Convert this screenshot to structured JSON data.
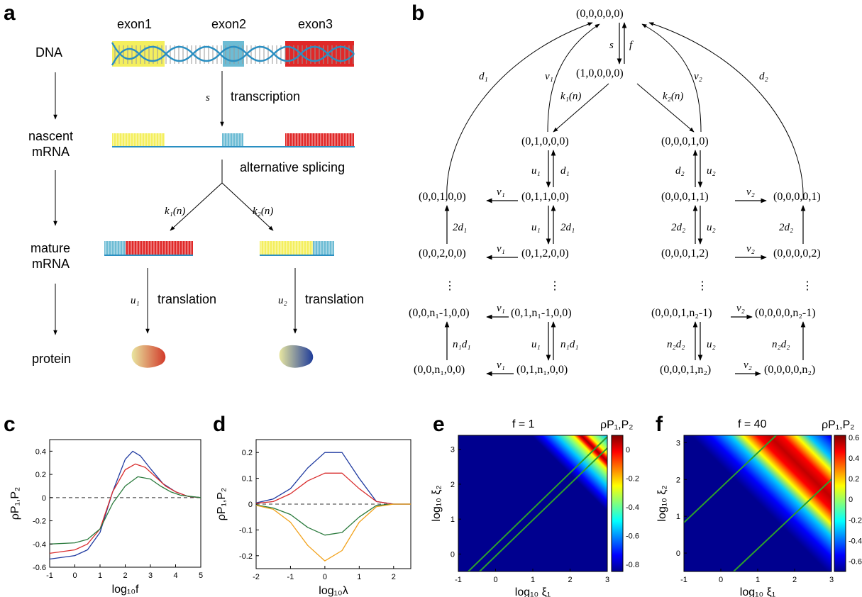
{
  "panel_labels": {
    "a": "a",
    "b": "b",
    "c": "c",
    "d": "d",
    "e": "e",
    "f": "f"
  },
  "panel_a": {
    "exon1": "exon1",
    "exon2": "exon2",
    "exon3": "exon3",
    "dna": "DNA",
    "nascent1": "nascent",
    "nascent2": "mRNA",
    "mature1": "mature",
    "mature2": "mRNA",
    "protein": "protein",
    "s": "s",
    "transcription": "transcription",
    "alt_splicing": "alternative splicing",
    "k1": "k₁(n)",
    "k2": "k₂(n)",
    "u1": "u₁",
    "u2": "u₂",
    "translation1": "translation",
    "translation2": "translation"
  },
  "panel_b": {
    "top": "(0,0,0,0,0)",
    "second": "(1,0,0,0,0)",
    "s": "s",
    "f": "f",
    "d1": "d₁",
    "v1": "v₁",
    "v2": "v₂",
    "d2": "d₂",
    "k1n": "k₁(n)",
    "k2n": "k₂(n)",
    "l1": "(0,1,0,0,0)",
    "r1": "(0,0,0,1,0)",
    "u1": "u₁",
    "du1": "d₁",
    "d2l": "d₂",
    "u2": "u₂",
    "l2": "(0,1,1,0,0)",
    "ll2": "(0,0,1,0,0)",
    "r2": "(0,0,0,1,1)",
    "rr2": "(0,0,0,0,1)",
    "two_d1": "2d₁",
    "two_d2": "2d₂",
    "l3": "(0,1,2,0,0)",
    "ll3": "(0,0,2,0,0)",
    "r3": "(0,0,0,1,2)",
    "rr3": "(0,0,0,0,2)",
    "dots": "⋮",
    "l4": "(0,1,n₁-1,0,0)",
    "ll4": "(0,0,n₁-1,0,0)",
    "r4": "(0,0,0,1,n₂-1)",
    "rr4": "(0,0,0,0,n₂-1)",
    "n1d1": "n₁d₁",
    "n2d2": "n₂d₂",
    "l5": "(0,1,n₁,0,0)",
    "ll5": "(0,0,n₁,0,0)",
    "r5": "(0,0,0,1,n₂)",
    "rr5": "(0,0,0,0,n₂)"
  },
  "panel_e_title": "f = 1",
  "panel_f_title": "f = 40",
  "colorbar_label": "ρP₁,P₂",
  "chart_data": [
    {
      "panel": "c",
      "type": "line",
      "xlabel": "log₁₀f",
      "ylabel": "ρP₁,P₂",
      "xlim": [
        -1,
        5
      ],
      "ylim": [
        -0.6,
        0.5
      ],
      "xticks": [
        -1,
        0,
        1,
        2,
        3,
        4,
        5
      ],
      "yticks": [
        -0.6,
        -0.4,
        -0.2,
        0,
        0.2,
        0.4
      ],
      "reference_line": 0,
      "series": [
        {
          "color": "#1f3aa0",
          "x": [
            -1,
            0,
            0.5,
            1,
            1.5,
            2,
            2.3,
            2.6,
            3,
            3.5,
            4,
            4.5,
            5
          ],
          "y": [
            -0.53,
            -0.5,
            -0.45,
            -0.3,
            0.05,
            0.33,
            0.4,
            0.36,
            0.25,
            0.12,
            0.05,
            0.01,
            0
          ]
        },
        {
          "color": "#d92d2d",
          "x": [
            -1,
            0,
            0.5,
            1,
            1.5,
            2,
            2.4,
            2.8,
            3.2,
            3.6,
            4,
            4.5,
            5
          ],
          "y": [
            -0.48,
            -0.45,
            -0.4,
            -0.27,
            0.05,
            0.24,
            0.29,
            0.26,
            0.18,
            0.1,
            0.05,
            0.01,
            0
          ]
        },
        {
          "color": "#2a7a3c",
          "x": [
            -1,
            0,
            0.5,
            1,
            1.5,
            2,
            2.5,
            3,
            3.4,
            3.8,
            4.2,
            4.6,
            5
          ],
          "y": [
            -0.4,
            -0.39,
            -0.36,
            -0.27,
            -0.05,
            0.1,
            0.18,
            0.16,
            0.1,
            0.05,
            0.02,
            0.01,
            0
          ]
        }
      ]
    },
    {
      "panel": "d",
      "type": "line",
      "xlabel": "log₁₀λ",
      "ylabel": "ρP₁,P₂",
      "xlim": [
        -2,
        2.5
      ],
      "ylim": [
        -0.25,
        0.25
      ],
      "xticks": [
        -2,
        -1,
        0,
        1,
        2
      ],
      "yticks": [
        -0.2,
        -0.1,
        0,
        0.1,
        0.2
      ],
      "reference_line": 0,
      "series": [
        {
          "color": "#1f3aa0",
          "x": [
            -2,
            -1.5,
            -1,
            -0.5,
            0,
            0.5,
            1,
            1.5,
            2,
            2.5
          ],
          "y": [
            0.005,
            0.02,
            0.06,
            0.14,
            0.2,
            0.2,
            0.1,
            0.01,
            0,
            0
          ]
        },
        {
          "color": "#d92d2d",
          "x": [
            -2,
            -1.5,
            -1,
            -0.5,
            0,
            0.5,
            1,
            1.5,
            2,
            2.5
          ],
          "y": [
            0.003,
            0.01,
            0.04,
            0.09,
            0.12,
            0.12,
            0.06,
            0.01,
            0,
            0
          ]
        },
        {
          "color": "#2a7a3c",
          "x": [
            -2,
            -1.5,
            -1,
            -0.5,
            0,
            0.5,
            1,
            1.5,
            2,
            2.5
          ],
          "y": [
            -0.003,
            -0.015,
            -0.04,
            -0.09,
            -0.12,
            -0.11,
            -0.05,
            -0.005,
            0,
            0
          ]
        },
        {
          "color": "#f2a21b",
          "x": [
            -2,
            -1.5,
            -1,
            -0.5,
            0,
            0.5,
            1,
            1.5,
            2,
            2.5
          ],
          "y": [
            -0.005,
            -0.02,
            -0.07,
            -0.16,
            -0.22,
            -0.18,
            -0.07,
            -0.01,
            0,
            0
          ]
        }
      ]
    },
    {
      "panel": "e",
      "type": "heatmap",
      "title": "f = 1",
      "xlabel": "log₁₀ ξ₁",
      "ylabel": "log₁₀ ξ₂",
      "xlim": [
        -1,
        3
      ],
      "ylim": [
        -0.5,
        3.4
      ],
      "xticks": [
        -1,
        0,
        1,
        2,
        3
      ],
      "yticks": [
        0,
        1,
        2,
        3
      ],
      "colorbar_range": [
        -0.85,
        0.1
      ],
      "colorbar_ticks": [
        0,
        -0.2,
        -0.4,
        -0.6,
        -0.8
      ]
    },
    {
      "panel": "f",
      "type": "heatmap",
      "title": "f = 40",
      "xlabel": "log₁₀ ξ₁",
      "ylabel": "log₁₀ ξ₂",
      "xlim": [
        -1,
        3
      ],
      "ylim": [
        -0.5,
        3.2
      ],
      "xticks": [
        -1,
        0,
        1,
        2,
        3
      ],
      "yticks": [
        0,
        1,
        2,
        3
      ],
      "colorbar_range": [
        -0.7,
        0.62
      ],
      "colorbar_ticks": [
        0.6,
        0.4,
        0.2,
        0,
        -0.2,
        -0.4,
        -0.6
      ]
    }
  ]
}
